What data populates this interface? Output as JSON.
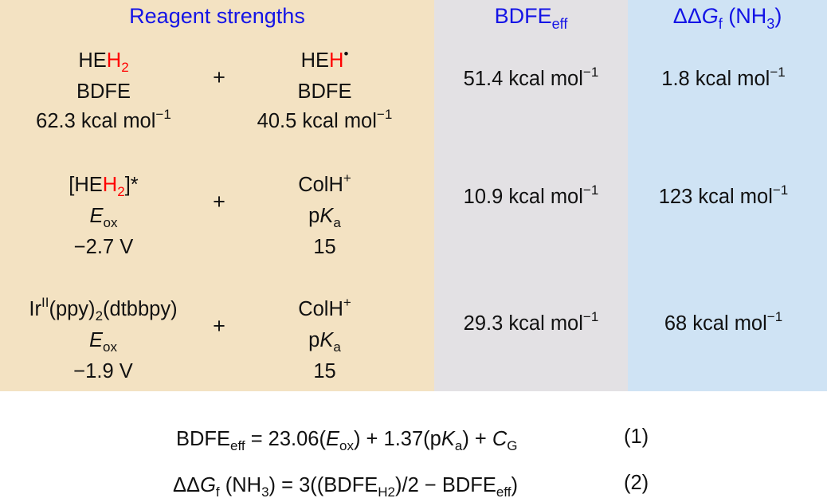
{
  "colors": {
    "reagent_panel": "#f3e2c2",
    "bdfe_panel": "#e3e1e4",
    "ddg_panel": "#cfe3f4",
    "header_text": "#1414e6",
    "hydrogen_highlight": "#ff0000"
  },
  "headers": {
    "reagents": "Reagent strengths",
    "bdfe_base": "BDFE",
    "bdfe_sub": "eff",
    "ddg_prefix": "ΔΔ",
    "ddg_g": "G",
    "ddg_sub": "f",
    "ddg_paren_open": " (NH",
    "ddg_paren_sub": "3",
    "ddg_paren_close": ")"
  },
  "rows": [
    {
      "left": {
        "line1_pre": "HE",
        "line1_red": "H",
        "line1_sub": "2",
        "line1_post": "",
        "line2": "BDFE",
        "line3": "62.3 kcal mol",
        "line3_sup": "−1"
      },
      "plus": "+",
      "right": {
        "line1_pre": "HE",
        "line1_red": "H",
        "line1_sup": "•",
        "line2": "BDFE",
        "line3": "40.5 kcal mol",
        "line3_sup": "−1"
      },
      "bdfe_eff": "51.4 kcal mol",
      "bdfe_eff_sup": "−1",
      "ddg": "1.8 kcal mol",
      "ddg_sup": "−1"
    },
    {
      "left": {
        "line1_pre": "[HE",
        "line1_red": "H",
        "line1_sub": "2",
        "line1_post": "]*",
        "line2_italic": "E",
        "line2_sub": "ox",
        "line3": "−2.7 V"
      },
      "plus": "+",
      "right": {
        "line1_pre": "ColH",
        "line1_sup": "+",
        "line2_pre": "p",
        "line2_italic": "K",
        "line2_sub": "a",
        "line3": "15"
      },
      "bdfe_eff": "10.9 kcal mol",
      "bdfe_eff_sup": "−1",
      "ddg": "123 kcal mol",
      "ddg_sup": "−1"
    },
    {
      "left": {
        "line1_pre": "Ir",
        "line1_sup": "II",
        "line1_mid": "(ppy)",
        "line1_sub": "2",
        "line1_post": "(dtbbpy)",
        "line2_italic": "E",
        "line2_sub": "ox",
        "line3": "−1.9 V"
      },
      "plus": "+",
      "right": {
        "line1_pre": "ColH",
        "line1_sup": "+",
        "line2_pre": "p",
        "line2_italic": "K",
        "line2_sub": "a",
        "line3": "15"
      },
      "bdfe_eff": "29.3 kcal mol",
      "bdfe_eff_sup": "−1",
      "ddg": "68 kcal mol",
      "ddg_sup": "−1"
    }
  ],
  "equations": [
    {
      "parts": [
        {
          "t": "BDFE"
        },
        {
          "sub": "eff"
        },
        {
          "t": " = 23.06("
        },
        {
          "i": "E"
        },
        {
          "sub": "ox"
        },
        {
          "t": ") + 1.37(p"
        },
        {
          "i": "K"
        },
        {
          "sub": "a"
        },
        {
          "t": ") + "
        },
        {
          "i": "C"
        },
        {
          "sub": "G"
        }
      ],
      "number": "(1)"
    },
    {
      "parts": [
        {
          "t": "ΔΔ"
        },
        {
          "i": "G"
        },
        {
          "sub": "f"
        },
        {
          "t": " (NH"
        },
        {
          "sub": "3"
        },
        {
          "t": ") = 3((BDFE"
        },
        {
          "sub": "H2"
        },
        {
          "t": ")/2 − BDFE"
        },
        {
          "sub": "eff"
        },
        {
          "t": ")"
        }
      ],
      "number": "(2)"
    }
  ]
}
